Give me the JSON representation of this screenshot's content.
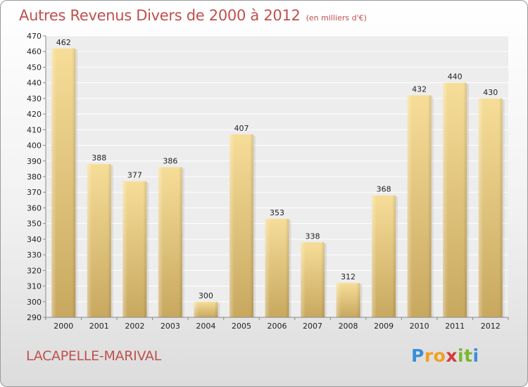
{
  "header": {
    "title": "Autres Revenus Divers de 2000 à 2012",
    "subtitle": "(en milliers d'€)"
  },
  "footer": {
    "commune": "LACAPELLE-MARIVAL",
    "brand_letters": [
      {
        "ch": "P",
        "color": "#3a8fd6"
      },
      {
        "ch": "r",
        "color": "#f0a020"
      },
      {
        "ch": "o",
        "color": "#f0a020"
      },
      {
        "ch": "x",
        "color": "#d63a3a"
      },
      {
        "ch": "i",
        "color": "#7ab82e"
      },
      {
        "ch": "t",
        "color": "#7ab82e"
      },
      {
        "ch": "i",
        "color": "#3a8fd6"
      }
    ]
  },
  "chart_data": {
    "type": "bar",
    "title": "Autres Revenus Divers de 2000 à 2012",
    "subtitle": "(en milliers d'€)",
    "categories": [
      "2000",
      "2001",
      "2002",
      "2003",
      "2004",
      "2005",
      "2006",
      "2007",
      "2008",
      "2009",
      "2010",
      "2011",
      "2012"
    ],
    "values": [
      462,
      388,
      377,
      386,
      300,
      407,
      353,
      338,
      312,
      368,
      432,
      440,
      430
    ],
    "ylim": [
      290,
      470
    ],
    "yticks": [
      290,
      300,
      310,
      320,
      330,
      340,
      350,
      360,
      370,
      380,
      390,
      400,
      410,
      420,
      430,
      440,
      450,
      460,
      470
    ],
    "grid": true,
    "bar_color": "#e8cc84",
    "bar_color_dark": "#c9a95c"
  }
}
